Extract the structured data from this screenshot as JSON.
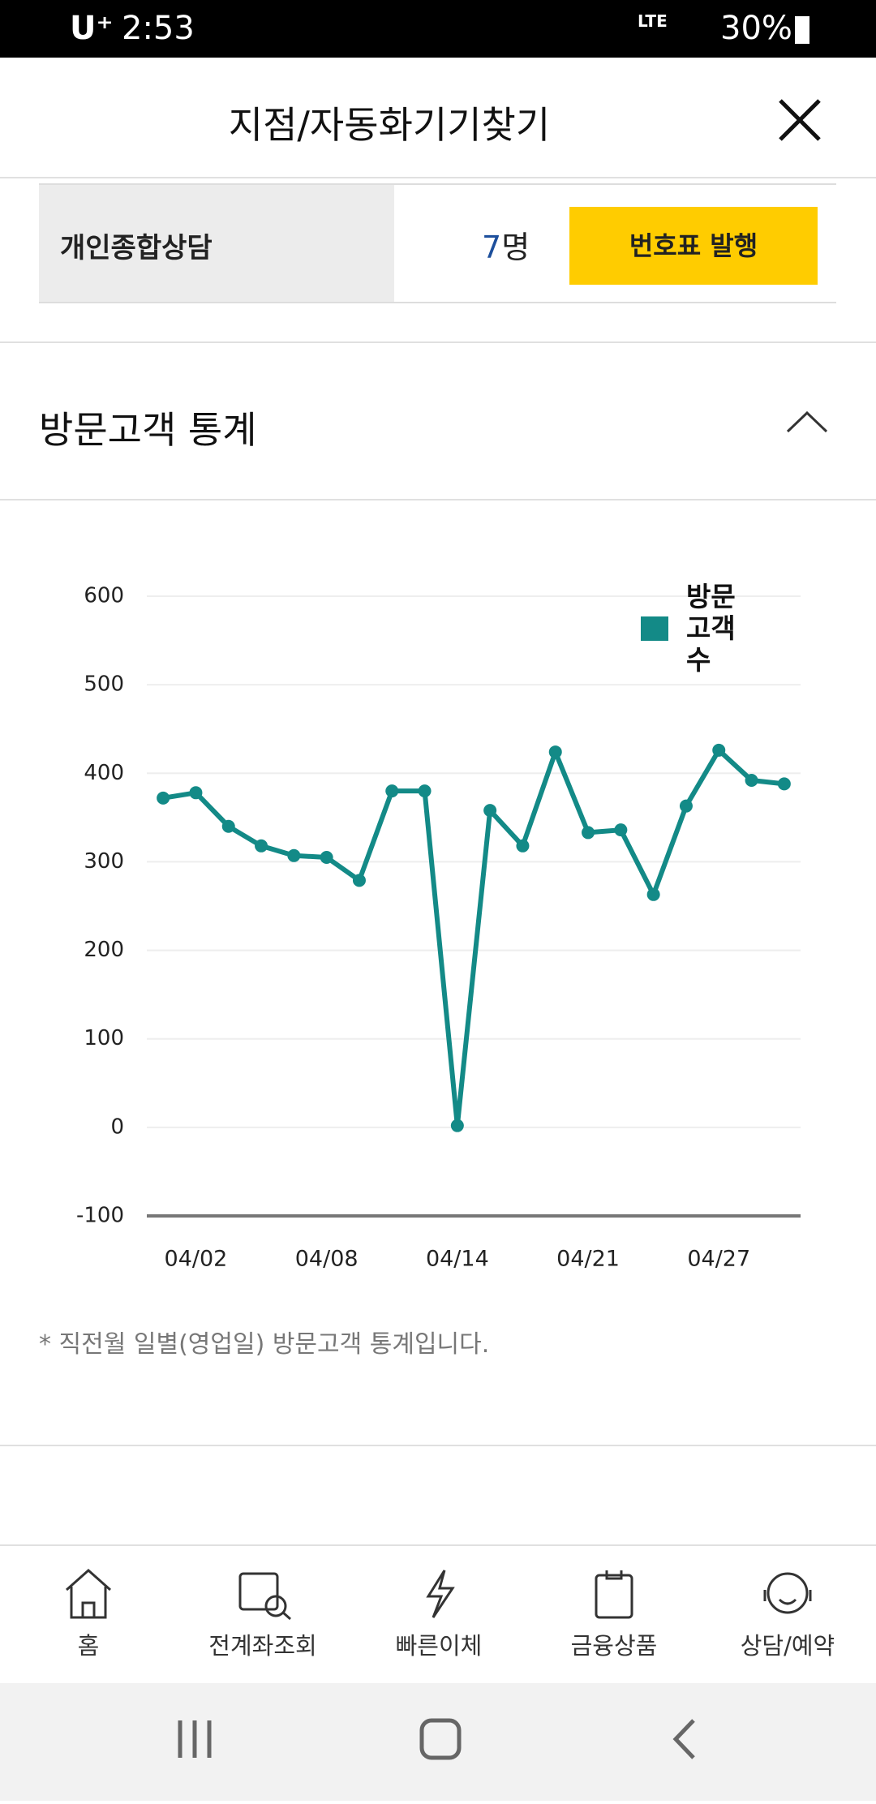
{
  "status_bar": {
    "carrier": "U⁺",
    "time": "2:53",
    "network": "LTE",
    "battery": "30%"
  },
  "header": {
    "title": "지점/자동화기기찾기"
  },
  "counter": {
    "label": "개인종합상담",
    "count": "7",
    "unit": "명",
    "button": "번호표 발행"
  },
  "section": {
    "title": "방문고객 통계"
  },
  "chart_data": {
    "type": "line",
    "categories": [
      null,
      "04/02",
      null,
      null,
      null,
      "04/08",
      null,
      null,
      null,
      "04/14",
      null,
      null,
      null,
      "04/21",
      null,
      null,
      null,
      "04/27",
      null,
      null
    ],
    "series": [
      {
        "name": "방문고객수",
        "color": "#138a87",
        "values": [
          372,
          378,
          340,
          318,
          307,
          305,
          279,
          380,
          380,
          2,
          358,
          318,
          424,
          333,
          336,
          263,
          363,
          426,
          392,
          388
        ]
      }
    ],
    "ylim": [
      -100,
      600
    ],
    "yticks": [
      -100,
      0,
      100,
      200,
      300,
      400,
      500,
      600
    ],
    "grid": true,
    "legend": "top-right"
  },
  "note": "* 직전월 일별(영업일) 방문고객 통계입니다.",
  "nav": [
    "홈",
    "전계좌조회",
    "빠른이체",
    "금융상품",
    "상담/예약"
  ]
}
